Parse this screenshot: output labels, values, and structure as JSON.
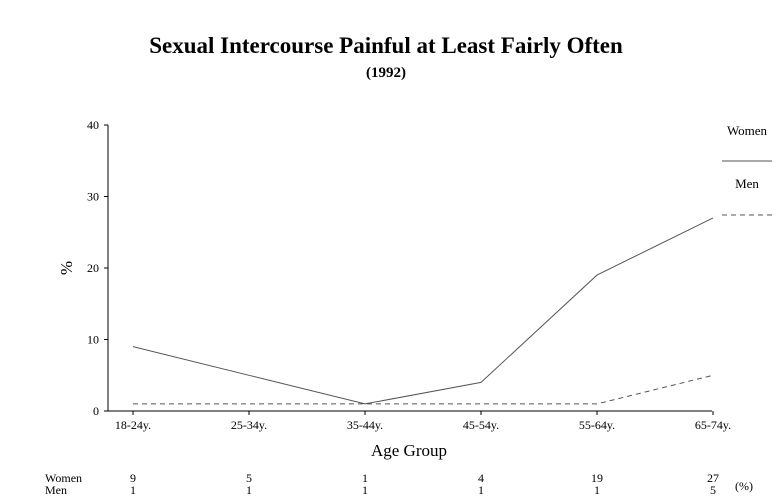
{
  "chart_data": {
    "type": "line",
    "title": "Sexual Intercourse Painful at Least Fairly Often",
    "subtitle": "(1992)",
    "xlabel": "Age Group",
    "ylabel": "%",
    "categories": [
      "18-24y.",
      "25-34y.",
      "35-44y.",
      "45-54y.",
      "55-64y.",
      "65-74y."
    ],
    "ylim": [
      0,
      40
    ],
    "yticks": [
      0,
      10,
      20,
      30,
      40
    ],
    "series": [
      {
        "name": "Women",
        "values": [
          9,
          5,
          1,
          4,
          19,
          27
        ],
        "style": "solid",
        "color": "#555555"
      },
      {
        "name": "Men",
        "values": [
          1,
          1,
          1,
          1,
          1,
          5
        ],
        "style": "dashed",
        "color": "#555555"
      }
    ],
    "legend_position": "right",
    "grid": false,
    "table": {
      "unit": "(%)",
      "rows": [
        {
          "label": "Women",
          "values": [
            "9",
            "5",
            "1",
            "4",
            "19",
            "27"
          ]
        },
        {
          "label": "Men",
          "values": [
            "1",
            "1",
            "1",
            "1",
            "1",
            "5"
          ]
        }
      ]
    }
  }
}
